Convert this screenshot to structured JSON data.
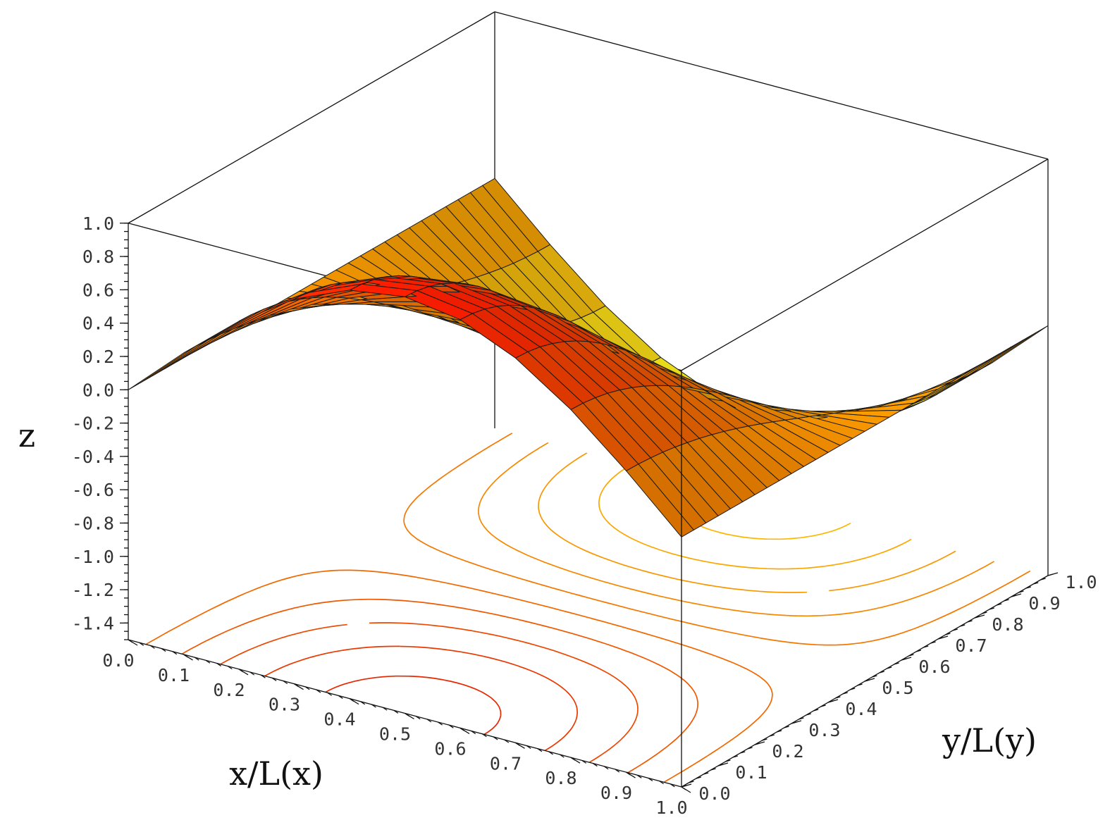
{
  "chart_data": {
    "type": "surface",
    "function": "z = sin(pi*x) * cos(pi*y)",
    "x_label": "x/L(x)",
    "y_label": "y/L(y)",
    "z_label": "z",
    "x_ticks": [
      "0.0",
      "0.1",
      "0.2",
      "0.3",
      "0.4",
      "0.5",
      "0.6",
      "0.7",
      "0.8",
      "0.9",
      "1.0"
    ],
    "y_ticks": [
      "0.0",
      "0.1",
      "0.2",
      "0.3",
      "0.4",
      "0.5",
      "0.6",
      "0.7",
      "0.8",
      "0.9",
      "1.0"
    ],
    "z_ticks": [
      "1.0",
      "0.8",
      "0.6",
      "0.4",
      "0.2",
      "0.0",
      "-0.2",
      "-0.4",
      "-0.6",
      "-0.8",
      "-1.0",
      "-1.2",
      "-1.4"
    ],
    "x_range": [
      0,
      1
    ],
    "y_range": [
      0,
      1
    ],
    "z_range": [
      -1.5,
      1.0
    ],
    "grid_x_lines": 11,
    "grid_y_lines": 31,
    "contour_levels": [
      -0.9,
      -0.7,
      -0.5,
      -0.3,
      -0.1,
      0.1,
      0.3,
      0.5,
      0.7,
      0.9
    ],
    "colors": {
      "high": "#ff1a00",
      "mid": "#ff9a00",
      "low": "#ffff20",
      "grid_line": "#1a1a1a",
      "contour_high": "#e62000",
      "contour_low": "#ffbf00"
    }
  }
}
